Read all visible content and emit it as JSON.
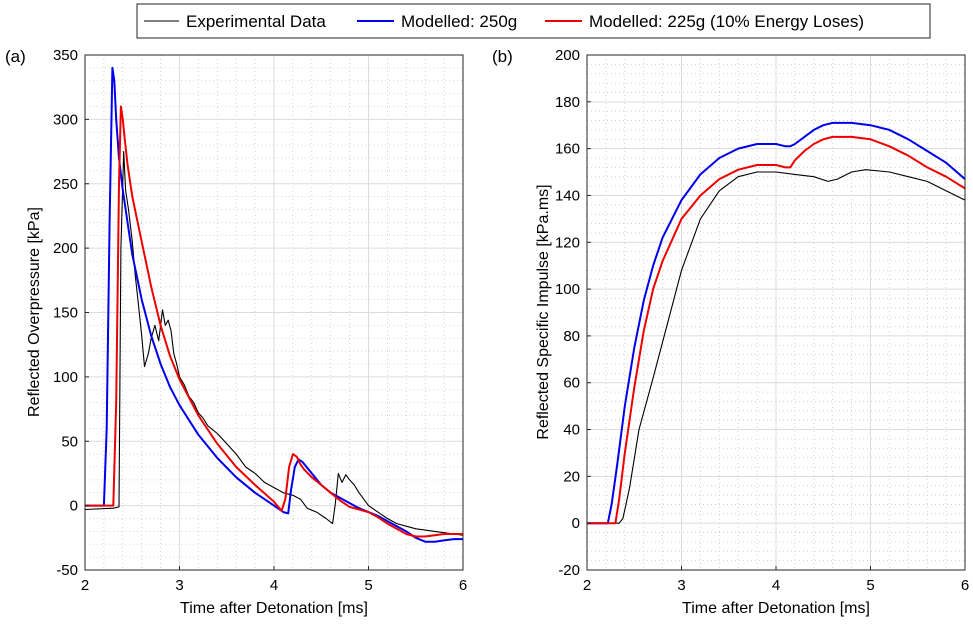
{
  "legend": {
    "placement": "top-center",
    "entries": [
      {
        "label": "Experimental Data",
        "color": "#000000"
      },
      {
        "label": "Modelled: 250g",
        "color": "#0000ee"
      },
      {
        "label": "Modelled: 225g (10% Energy Loses)",
        "color": "#ee0000"
      }
    ]
  },
  "chart_data": [
    {
      "type": "line",
      "panel_label": "(a)",
      "xlabel": "Time after Detonation [ms]",
      "ylabel": "Reflected Overpressure [kPa]",
      "xlim": [
        2,
        6
      ],
      "ylim": [
        -50,
        350
      ],
      "xticks": [
        2,
        3,
        4,
        5,
        6
      ],
      "yticks": [
        -50,
        0,
        50,
        100,
        150,
        200,
        250,
        300,
        350
      ],
      "grid": true,
      "minor_grid": true,
      "series": [
        {
          "name": "Experimental Data",
          "color": "#000000",
          "x": [
            2.0,
            2.3,
            2.36,
            2.38,
            2.41,
            2.43,
            2.46,
            2.5,
            2.53,
            2.56,
            2.6,
            2.63,
            2.67,
            2.7,
            2.74,
            2.78,
            2.82,
            2.85,
            2.88,
            2.91,
            2.94,
            2.97,
            3.0,
            3.05,
            3.1,
            3.15,
            3.2,
            3.25,
            3.3,
            3.4,
            3.5,
            3.6,
            3.7,
            3.8,
            3.9,
            4.0,
            4.1,
            4.2,
            4.28,
            4.35,
            4.45,
            4.55,
            4.62,
            4.65,
            4.68,
            4.72,
            4.76,
            4.8,
            4.85,
            4.9,
            5.0,
            5.1,
            5.2,
            5.3,
            5.4,
            5.5,
            5.6,
            5.7,
            5.8,
            5.9,
            6.0
          ],
          "values": [
            -3,
            -2,
            -1,
            200,
            275,
            245,
            230,
            205,
            180,
            160,
            132,
            108,
            118,
            130,
            140,
            128,
            152,
            140,
            144,
            136,
            118,
            110,
            100,
            94,
            85,
            80,
            72,
            68,
            62,
            56,
            48,
            40,
            30,
            25,
            18,
            14,
            10,
            8,
            5,
            -2,
            -5,
            -10,
            -14,
            2,
            25,
            18,
            24,
            20,
            16,
            10,
            0,
            -5,
            -10,
            -14,
            -16,
            -18,
            -19,
            -20,
            -21,
            -22,
            -23
          ]
        },
        {
          "name": "Modelled: 250g",
          "color": "#0000ee",
          "x": [
            2.0,
            2.2,
            2.23,
            2.26,
            2.29,
            2.31,
            2.33,
            2.36,
            2.4,
            2.5,
            2.6,
            2.7,
            2.8,
            2.9,
            3.0,
            3.2,
            3.4,
            3.6,
            3.8,
            4.0,
            4.1,
            4.15,
            4.18,
            4.22,
            4.26,
            4.3,
            4.4,
            4.5,
            4.6,
            4.7,
            4.8,
            4.9,
            5.0,
            5.1,
            5.2,
            5.3,
            5.4,
            5.5,
            5.6,
            5.7,
            5.8,
            5.9,
            6.0
          ],
          "values": [
            0,
            0,
            60,
            220,
            340,
            330,
            300,
            270,
            245,
            195,
            160,
            132,
            110,
            92,
            78,
            55,
            37,
            22,
            10,
            0,
            -5,
            -6,
            12,
            30,
            36,
            34,
            25,
            16,
            10,
            6,
            2,
            -2,
            -5,
            -8,
            -12,
            -16,
            -20,
            -25,
            -28,
            -28,
            -27,
            -26,
            -26
          ]
        },
        {
          "name": "Modelled: 225g (10% Energy Loses)",
          "color": "#ee0000",
          "x": [
            2.0,
            2.3,
            2.33,
            2.36,
            2.38,
            2.4,
            2.42,
            2.45,
            2.5,
            2.6,
            2.7,
            2.8,
            2.9,
            3.0,
            3.2,
            3.4,
            3.6,
            3.8,
            4.0,
            4.08,
            4.12,
            4.16,
            4.2,
            4.24,
            4.28,
            4.32,
            4.4,
            4.5,
            4.6,
            4.7,
            4.8,
            4.9,
            5.0,
            5.1,
            5.2,
            5.3,
            5.4,
            5.5,
            5.6,
            5.7,
            5.8,
            5.9,
            6.0
          ],
          "values": [
            0,
            0,
            80,
            250,
            310,
            300,
            285,
            265,
            240,
            205,
            170,
            140,
            116,
            98,
            70,
            48,
            30,
            16,
            3,
            -4,
            5,
            30,
            40,
            38,
            32,
            28,
            22,
            16,
            10,
            4,
            -1,
            -3,
            -5,
            -9,
            -14,
            -18,
            -22,
            -24,
            -24,
            -23,
            -22,
            -22,
            -22
          ]
        }
      ]
    },
    {
      "type": "line",
      "panel_label": "(b)",
      "xlabel": "Time after Detonation [ms]",
      "ylabel": "Reflected Specific Impulse [kPa.ms]",
      "xlim": [
        2,
        6
      ],
      "ylim": [
        -20,
        200
      ],
      "xticks": [
        2,
        3,
        4,
        5,
        6
      ],
      "yticks": [
        -20,
        0,
        20,
        40,
        60,
        80,
        100,
        120,
        140,
        160,
        180,
        200
      ],
      "grid": true,
      "minor_grid": true,
      "series": [
        {
          "name": "Experimental Data",
          "color": "#000000",
          "x": [
            2.0,
            2.34,
            2.38,
            2.45,
            2.55,
            2.7,
            2.85,
            3.0,
            3.2,
            3.4,
            3.6,
            3.8,
            4.0,
            4.2,
            4.4,
            4.55,
            4.65,
            4.8,
            4.95,
            5.2,
            5.4,
            5.6,
            5.8,
            6.0
          ],
          "values": [
            0,
            0,
            2,
            15,
            40,
            62,
            85,
            108,
            130,
            142,
            148,
            150,
            150,
            149,
            148,
            146,
            147,
            150,
            151,
            150,
            148,
            146,
            142,
            138
          ]
        },
        {
          "name": "Modelled: 250g",
          "color": "#0000ee",
          "x": [
            2.0,
            2.22,
            2.26,
            2.32,
            2.4,
            2.5,
            2.6,
            2.7,
            2.8,
            3.0,
            3.2,
            3.4,
            3.6,
            3.8,
            4.0,
            4.1,
            4.15,
            4.2,
            4.3,
            4.4,
            4.5,
            4.6,
            4.7,
            4.8,
            5.0,
            5.2,
            5.4,
            5.6,
            5.8,
            6.0
          ],
          "values": [
            0,
            0,
            8,
            25,
            50,
            75,
            95,
            110,
            122,
            138,
            149,
            156,
            160,
            162,
            162,
            161,
            161,
            162,
            165,
            168,
            170,
            171,
            171,
            171,
            170,
            168,
            164,
            159,
            154,
            147
          ]
        },
        {
          "name": "Modelled: 225g (10% Energy Loses)",
          "color": "#ee0000",
          "x": [
            2.0,
            2.3,
            2.34,
            2.4,
            2.5,
            2.6,
            2.7,
            2.8,
            3.0,
            3.2,
            3.4,
            3.6,
            3.8,
            4.0,
            4.1,
            4.15,
            4.2,
            4.3,
            4.4,
            4.5,
            4.6,
            4.7,
            4.8,
            5.0,
            5.2,
            5.4,
            5.6,
            5.8,
            6.0
          ],
          "values": [
            0,
            0,
            10,
            30,
            58,
            82,
            100,
            112,
            130,
            140,
            147,
            151,
            153,
            153,
            152,
            152,
            155,
            159,
            162,
            164,
            165,
            165,
            165,
            164,
            161,
            157,
            152,
            148,
            143
          ]
        }
      ]
    }
  ]
}
